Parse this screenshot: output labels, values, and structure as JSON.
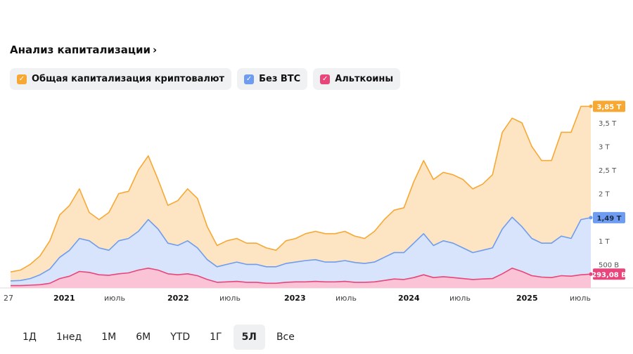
{
  "title": "Анализ капитализации",
  "title_chevron": "›",
  "legend": [
    {
      "label": "Общая капитализация криптовалют",
      "color": "#f7a833",
      "check": "✓"
    },
    {
      "label": "Без BTC",
      "color": "#6e9cf0",
      "check": "✓"
    },
    {
      "label": "Альткоины",
      "color": "#e8457a",
      "check": "✓"
    }
  ],
  "tabs": [
    "1Д",
    "1нед",
    "1М",
    "6М",
    "YTD",
    "1Г",
    "5Л",
    "Все"
  ],
  "active_tab": "5Л",
  "chart_data": {
    "type": "area",
    "x_tick_labels": [
      "27",
      "2021",
      "июль",
      "2022",
      "июль",
      "2023",
      "июль",
      "2024",
      "июль",
      "2025",
      "июль"
    ],
    "y_tick_labels": [
      {
        "label": "500 B",
        "value": 0.5
      },
      {
        "label": "1 T",
        "value": 1.0
      },
      {
        "label": "1,5 T",
        "value": 1.5
      },
      {
        "label": "2 T",
        "value": 2.0
      },
      {
        "label": "2,5 T",
        "value": 2.5
      },
      {
        "label": "3 T",
        "value": 3.0
      },
      {
        "label": "3,5 T",
        "value": 3.5
      }
    ],
    "ylim": [
      0,
      3.9
    ],
    "x": [
      "2020-09",
      "2020-10",
      "2020-11",
      "2020-12",
      "2021-01",
      "2021-02",
      "2021-03",
      "2021-04",
      "2021-05",
      "2021-06",
      "2021-07",
      "2021-08",
      "2021-09",
      "2021-10",
      "2021-11",
      "2021-12",
      "2022-01",
      "2022-02",
      "2022-03",
      "2022-04",
      "2022-05",
      "2022-06",
      "2022-07",
      "2022-08",
      "2022-09",
      "2022-10",
      "2022-11",
      "2022-12",
      "2023-01",
      "2023-02",
      "2023-03",
      "2023-04",
      "2023-05",
      "2023-06",
      "2023-07",
      "2023-08",
      "2023-09",
      "2023-10",
      "2023-11",
      "2023-12",
      "2024-01",
      "2024-02",
      "2024-03",
      "2024-04",
      "2024-05",
      "2024-06",
      "2024-07",
      "2024-08",
      "2024-09",
      "2024-10",
      "2024-11",
      "2024-12",
      "2025-01",
      "2025-02",
      "2025-03",
      "2025-04",
      "2025-05",
      "2025-06",
      "2025-07",
      "2025-08"
    ],
    "series": [
      {
        "name": "Общая капитализация криптовалют",
        "color": "#f7a833",
        "fill": "#fde5c3",
        "end_label": "3,85 T",
        "values": [
          0.34,
          0.38,
          0.5,
          0.68,
          1.0,
          1.55,
          1.75,
          2.1,
          1.6,
          1.45,
          1.6,
          2.0,
          2.05,
          2.5,
          2.8,
          2.3,
          1.75,
          1.85,
          2.1,
          1.9,
          1.3,
          0.9,
          1.0,
          1.05,
          0.95,
          0.95,
          0.85,
          0.8,
          1.0,
          1.05,
          1.15,
          1.2,
          1.15,
          1.15,
          1.2,
          1.1,
          1.05,
          1.2,
          1.45,
          1.65,
          1.7,
          2.25,
          2.7,
          2.3,
          2.45,
          2.4,
          2.3,
          2.1,
          2.2,
          2.4,
          3.3,
          3.6,
          3.5,
          3.0,
          2.7,
          2.7,
          3.3,
          3.3,
          3.85,
          3.85
        ]
      },
      {
        "name": "Без BTC",
        "color": "#6e9cf0",
        "fill": "#d7e4fb",
        "end_label": "1,49 T",
        "values": [
          0.15,
          0.16,
          0.2,
          0.28,
          0.4,
          0.65,
          0.8,
          1.05,
          1.0,
          0.85,
          0.8,
          1.0,
          1.05,
          1.2,
          1.45,
          1.25,
          0.95,
          0.9,
          1.0,
          0.85,
          0.6,
          0.45,
          0.5,
          0.55,
          0.5,
          0.5,
          0.45,
          0.45,
          0.52,
          0.55,
          0.58,
          0.6,
          0.55,
          0.55,
          0.58,
          0.54,
          0.52,
          0.55,
          0.65,
          0.75,
          0.75,
          0.95,
          1.15,
          0.9,
          1.0,
          0.95,
          0.85,
          0.75,
          0.8,
          0.85,
          1.25,
          1.5,
          1.3,
          1.05,
          0.95,
          0.95,
          1.1,
          1.05,
          1.45,
          1.49
        ]
      },
      {
        "name": "Альткоины",
        "color": "#e8457a",
        "fill": "#fbc4d6",
        "end_label": "293,08 B",
        "values": [
          0.05,
          0.05,
          0.06,
          0.07,
          0.1,
          0.2,
          0.25,
          0.35,
          0.33,
          0.28,
          0.27,
          0.3,
          0.32,
          0.38,
          0.42,
          0.38,
          0.3,
          0.28,
          0.3,
          0.26,
          0.18,
          0.12,
          0.13,
          0.14,
          0.12,
          0.12,
          0.1,
          0.1,
          0.12,
          0.13,
          0.13,
          0.14,
          0.13,
          0.13,
          0.14,
          0.12,
          0.12,
          0.13,
          0.16,
          0.19,
          0.18,
          0.22,
          0.28,
          0.22,
          0.24,
          0.22,
          0.2,
          0.18,
          0.19,
          0.2,
          0.3,
          0.42,
          0.35,
          0.26,
          0.23,
          0.22,
          0.26,
          0.25,
          0.28,
          0.293
        ]
      }
    ]
  }
}
